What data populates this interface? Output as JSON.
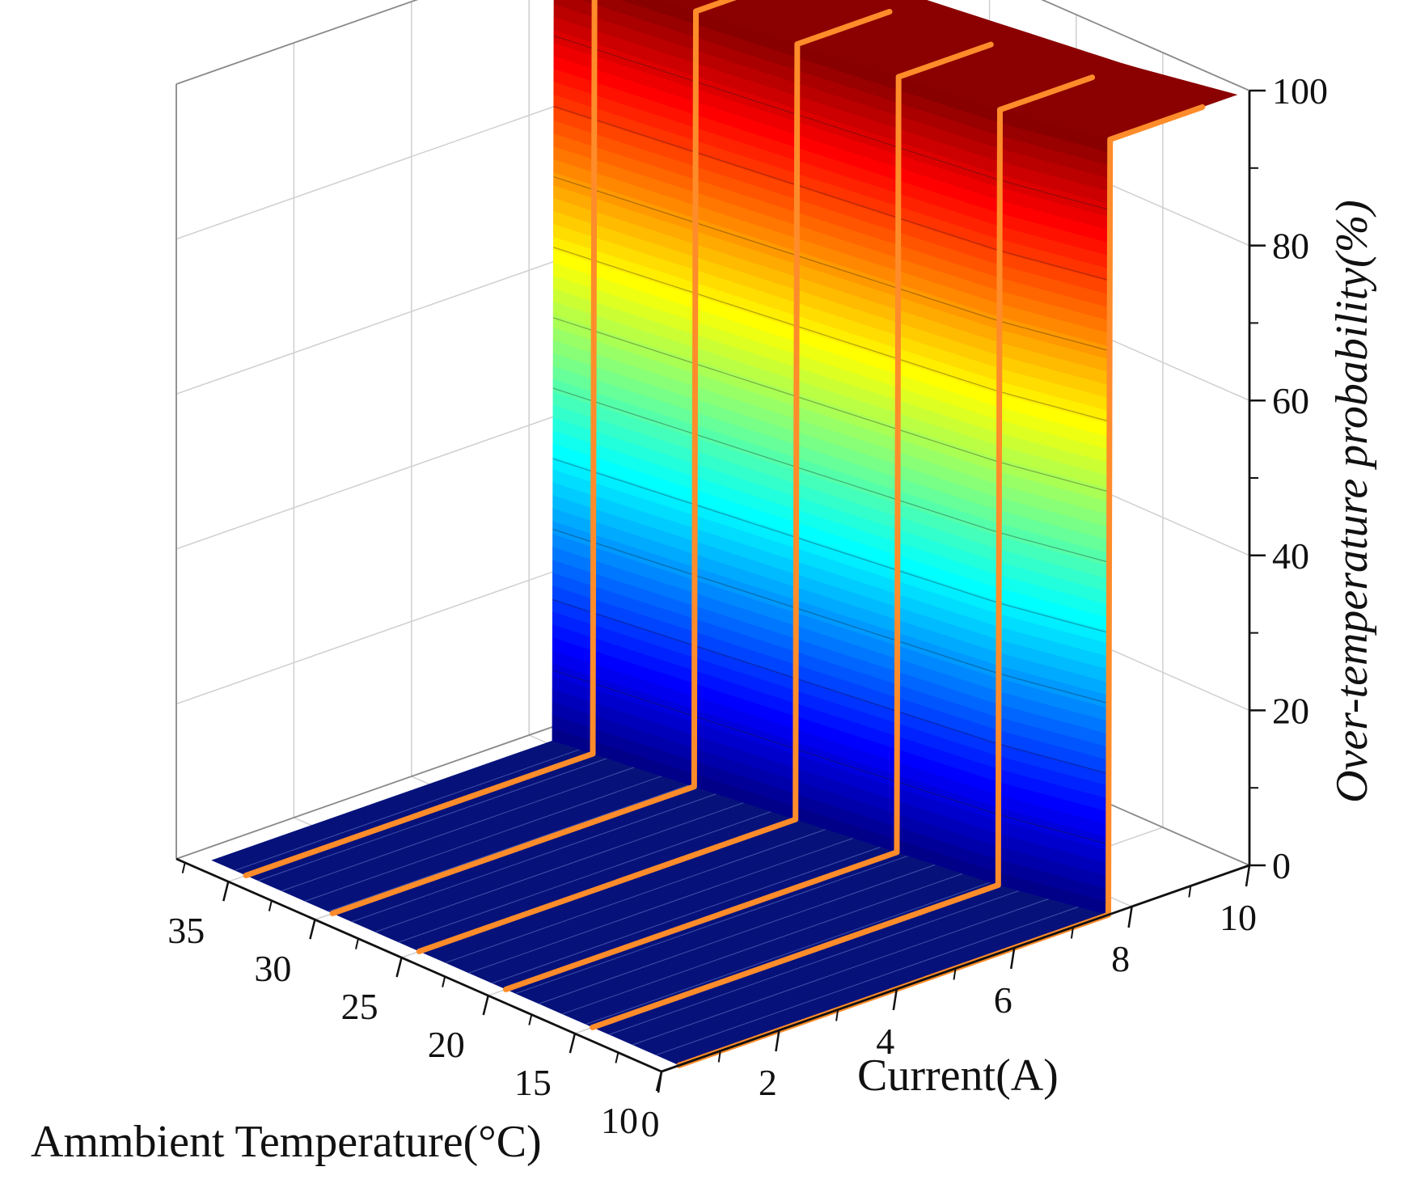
{
  "chart_data": {
    "type": "surface3d",
    "title": "",
    "xlabel": "Current(A)",
    "ylabel": "Ammbient Temperature(°C)",
    "zlabel": "Over-temperature probability(%)",
    "xlim": [
      0,
      10
    ],
    "ylim": [
      10,
      38
    ],
    "zlim": [
      0,
      100
    ],
    "x_ticks": [
      "0",
      "2",
      "4",
      "6",
      "8",
      "10"
    ],
    "y_ticks": [
      "35",
      "30",
      "25",
      "20",
      "15",
      "10"
    ],
    "z_ticks": [
      "0",
      "20",
      "40",
      "60",
      "80",
      "100"
    ],
    "grid": true,
    "colormap": "jet",
    "highlight_color": "#ff8c2a",
    "curves": [
      {
        "ambient_temperature": 35,
        "threshold_current": 6.2
      },
      {
        "ambient_temperature": 30,
        "threshold_current": 6.45
      },
      {
        "ambient_temperature": 25,
        "threshold_current": 6.7
      },
      {
        "ambient_temperature": 20,
        "threshold_current": 6.95
      },
      {
        "ambient_temperature": 15,
        "threshold_current": 7.2
      },
      {
        "ambient_temperature": 10,
        "threshold_current": 7.6
      }
    ]
  }
}
